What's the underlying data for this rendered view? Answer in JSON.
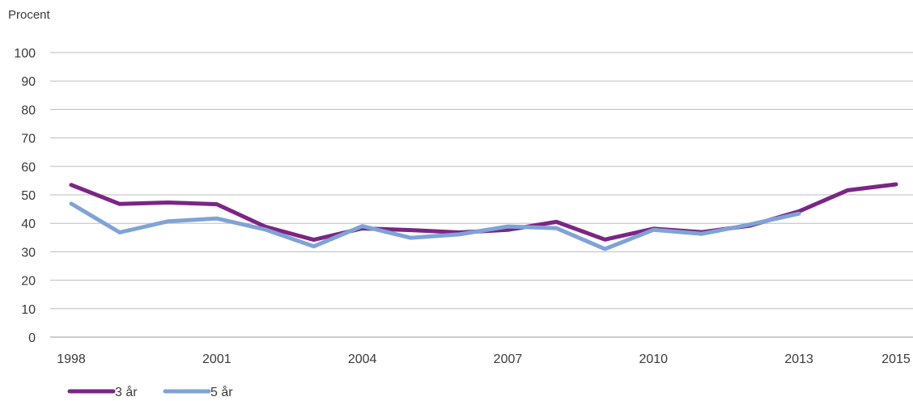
{
  "chart_data": {
    "type": "line",
    "ylabel": "Procent",
    "ylim": [
      0,
      100
    ],
    "yticks": [
      0,
      10,
      20,
      30,
      40,
      50,
      60,
      70,
      80,
      90,
      100
    ],
    "x": [
      1998,
      1999,
      2000,
      2001,
      2002,
      2003,
      2004,
      2005,
      2006,
      2007,
      2008,
      2009,
      2010,
      2011,
      2012,
      2013,
      2014,
      2015
    ],
    "xtick_labels": [
      "1998",
      "2001",
      "2004",
      "2007",
      "2010",
      "2013",
      "2015"
    ],
    "grid": true,
    "legend_position": "bottom-left",
    "series": [
      {
        "name": "3 år",
        "color": "#7b2585",
        "values": [
          53.5,
          46.8,
          47.3,
          46.7,
          38.8,
          34.2,
          38.2,
          37.6,
          36.8,
          37.7,
          40.5,
          34.3,
          38.1,
          36.9,
          39.2,
          44.2,
          51.6,
          53.7
        ]
      },
      {
        "name": "5 år",
        "color": "#7fa3d6",
        "values": [
          46.9,
          36.8,
          40.7,
          41.7,
          37.8,
          31.9,
          39.0,
          34.9,
          36.1,
          38.9,
          38.3,
          31.0,
          37.7,
          36.3,
          39.6,
          43.4,
          null,
          null
        ]
      }
    ]
  }
}
